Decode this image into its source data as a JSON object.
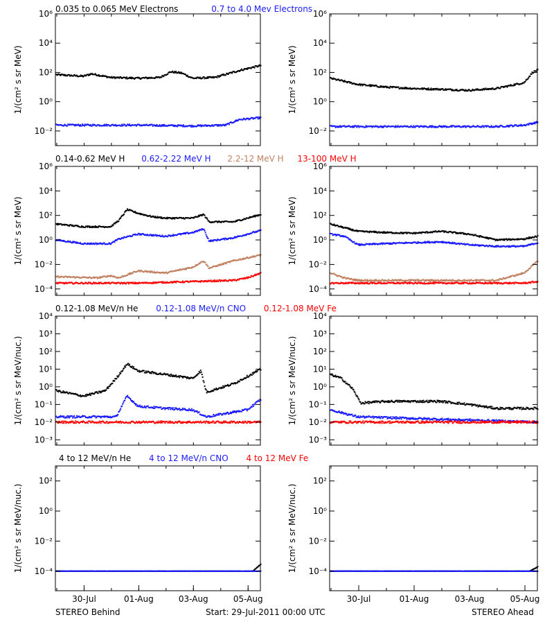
{
  "colors": {
    "black": "#000000",
    "blue": "#1a1aff",
    "tan": "#c08060",
    "red": "#ff0000"
  },
  "footer": {
    "left": "STEREO Behind",
    "center": "Start: 29-Jul-2011 00:00 UTC",
    "right": "STEREO Ahead"
  },
  "chart_data": [
    {
      "type": "scatter",
      "row": "electrons",
      "legend": [
        "0.035 to 0.065 MeV Electrons",
        "0.7 to 4.0 Mev Electrons"
      ],
      "ylabel": "1/(cm² s sr MeV)",
      "ylim": [
        0.001,
        1000000
      ],
      "log_y": true,
      "yticks": [
        "10⁻²",
        "10⁰",
        "10²",
        "10⁴",
        "10⁶"
      ],
      "xlim": [
        0,
        7.5
      ],
      "xticks": [
        "30-Jul",
        "01-Aug",
        "03-Aug",
        "05-Aug"
      ],
      "panels": [
        {
          "spacecraft": "STEREO Behind",
          "series": [
            {
              "color": "black",
              "knots": [
                [
                  0,
                  70
                ],
                [
                  1,
                  55
                ],
                [
                  1.3,
                  80
                ],
                [
                  2,
                  45
                ],
                [
                  3,
                  40
                ],
                [
                  3.8,
                  45
                ],
                [
                  4.2,
                  110
                ],
                [
                  4.6,
                  90
                ],
                [
                  5,
                  40
                ],
                [
                  5.8,
                  45
                ],
                [
                  6.8,
                  150
                ],
                [
                  7.5,
                  300
                ]
              ]
            },
            {
              "color": "blue",
              "knots": [
                [
                  0,
                  0.025
                ],
                [
                  3,
                  0.025
                ],
                [
                  5,
                  0.022
                ],
                [
                  6.2,
                  0.025
                ],
                [
                  6.7,
                  0.06
                ],
                [
                  7.5,
                  0.08
                ]
              ]
            }
          ]
        },
        {
          "spacecraft": "STEREO Ahead",
          "series": [
            {
              "color": "black",
              "knots": [
                [
                  0,
                  40
                ],
                [
                  1,
                  15
                ],
                [
                  2,
                  10
                ],
                [
                  3,
                  8
                ],
                [
                  4,
                  7
                ],
                [
                  5,
                  6
                ],
                [
                  6,
                  8
                ],
                [
                  7,
                  20
                ],
                [
                  7.3,
                  100
                ],
                [
                  7.5,
                  150
                ]
              ]
            },
            {
              "color": "blue",
              "knots": [
                [
                  0,
                  0.02
                ],
                [
                  6,
                  0.02
                ],
                [
                  7,
                  0.025
                ],
                [
                  7.5,
                  0.04
                ]
              ]
            }
          ]
        }
      ]
    },
    {
      "type": "scatter",
      "row": "protons",
      "legend": [
        "0.14-0.62 MeV H",
        "0.62-2.22 MeV H",
        "2.2-12 MeV H",
        "13-100 MeV H"
      ],
      "ylabel": "1/(cm² s sr MeV)",
      "ylim": [
        3e-05,
        1000000
      ],
      "log_y": true,
      "yticks": [
        "10⁻⁴",
        "10⁻²",
        "10⁰",
        "10²",
        "10⁴",
        "10⁶"
      ],
      "xlim": [
        0,
        7.5
      ],
      "xticks": [
        "30-Jul",
        "01-Aug",
        "03-Aug",
        "05-Aug"
      ],
      "panels": [
        {
          "spacecraft": "STEREO Behind",
          "series": [
            {
              "color": "black",
              "knots": [
                [
                  0,
                  20
                ],
                [
                  1,
                  12
                ],
                [
                  2,
                  12
                ],
                [
                  2.3,
                  40
                ],
                [
                  2.6,
                  300
                ],
                [
                  3,
                  150
                ],
                [
                  3.5,
                  80
                ],
                [
                  4,
                  60
                ],
                [
                  5,
                  60
                ],
                [
                  5.4,
                  120
                ],
                [
                  5.6,
                  30
                ],
                [
                  6.5,
                  30
                ],
                [
                  7.5,
                  120
                ]
              ]
            },
            {
              "color": "blue",
              "knots": [
                [
                  0,
                  1
                ],
                [
                  1,
                  0.5
                ],
                [
                  2,
                  0.5
                ],
                [
                  2.3,
                  1.2
                ],
                [
                  3,
                  3
                ],
                [
                  4,
                  2
                ],
                [
                  5,
                  4
                ],
                [
                  5.4,
                  8
                ],
                [
                  5.6,
                  0.8
                ],
                [
                  6.5,
                  1.5
                ],
                [
                  7.5,
                  6
                ]
              ]
            },
            {
              "color": "tan",
              "knots": [
                [
                  0,
                  0.001
                ],
                [
                  1.5,
                  0.0008
                ],
                [
                  2,
                  0.0012
                ],
                [
                  2.3,
                  0.0008
                ],
                [
                  3,
                  0.003
                ],
                [
                  4,
                  0.002
                ],
                [
                  5,
                  0.006
                ],
                [
                  5.4,
                  0.02
                ],
                [
                  5.6,
                  0.005
                ],
                [
                  6.5,
                  0.02
                ],
                [
                  7.5,
                  0.06
                ]
              ]
            },
            {
              "color": "red",
              "knots": [
                [
                  0,
                  0.0003
                ],
                [
                  3,
                  0.0003
                ],
                [
                  5,
                  0.0004
                ],
                [
                  6.5,
                  0.0005
                ],
                [
                  7,
                  0.0008
                ],
                [
                  7.5,
                  0.002
                ]
              ]
            }
          ]
        },
        {
          "spacecraft": "STEREO Ahead",
          "series": [
            {
              "color": "black",
              "knots": [
                [
                  0,
                  20
                ],
                [
                  0.5,
                  10
                ],
                [
                  1,
                  5
                ],
                [
                  2,
                  4
                ],
                [
                  3,
                  3.5
                ],
                [
                  4,
                  5
                ],
                [
                  5,
                  3
                ],
                [
                  6,
                  1
                ],
                [
                  7,
                  1.2
                ],
                [
                  7.5,
                  2
                ]
              ]
            },
            {
              "color": "blue",
              "knots": [
                [
                  0,
                  3
                ],
                [
                  0.5,
                  2
                ],
                [
                  1,
                  0.4
                ],
                [
                  2,
                  0.5
                ],
                [
                  3,
                  0.6
                ],
                [
                  4,
                  0.7
                ],
                [
                  5,
                  0.4
                ],
                [
                  6,
                  0.3
                ],
                [
                  7,
                  0.3
                ],
                [
                  7.5,
                  0.6
                ]
              ]
            },
            {
              "color": "tan",
              "knots": [
                [
                  0,
                  0.002
                ],
                [
                  0.5,
                  0.0008
                ],
                [
                  1,
                  0.0005
                ],
                [
                  6,
                  0.0005
                ],
                [
                  7,
                  0.002
                ],
                [
                  7.5,
                  0.02
                ]
              ]
            },
            {
              "color": "red",
              "knots": [
                [
                  0,
                  0.0003
                ],
                [
                  7,
                  0.0003
                ],
                [
                  7.5,
                  0.0004
                ]
              ]
            }
          ]
        }
      ]
    },
    {
      "type": "scatter",
      "row": "ions-low",
      "legend": [
        "0.12-1.08 MeV/n He",
        "0.12-1.08 MeV/n CNO",
        "0.12-1.08 MeV Fe"
      ],
      "ylabel": "1/(cm² s sr MeV/nuc.)",
      "ylim": [
        0.0005,
        10000
      ],
      "log_y": true,
      "yticks": [
        "10⁻³",
        "10⁻²",
        "10⁻¹",
        "10⁰",
        "10¹",
        "10²",
        "10³",
        "10⁴"
      ],
      "xlim": [
        0,
        7.5
      ],
      "xticks": [
        "30-Jul",
        "01-Aug",
        "03-Aug",
        "05-Aug"
      ],
      "panels": [
        {
          "spacecraft": "STEREO Behind",
          "series": [
            {
              "color": "black",
              "knots": [
                [
                  0,
                  0.6
                ],
                [
                  1,
                  0.3
                ],
                [
                  1.8,
                  0.6
                ],
                [
                  2.2,
                  3
                ],
                [
                  2.6,
                  20
                ],
                [
                  3,
                  8
                ],
                [
                  4,
                  5
                ],
                [
                  5,
                  3
                ],
                [
                  5.3,
                  8
                ],
                [
                  5.5,
                  0.5
                ],
                [
                  6.5,
                  1.5
                ],
                [
                  7.5,
                  10
                ]
              ]
            },
            {
              "color": "blue",
              "knots": [
                [
                  0,
                  0.02
                ],
                [
                  2.2,
                  0.02
                ],
                [
                  2.6,
                  0.3
                ],
                [
                  3,
                  0.08
                ],
                [
                  4,
                  0.06
                ],
                [
                  5,
                  0.05
                ],
                [
                  5.5,
                  0.02
                ],
                [
                  7,
                  0.05
                ],
                [
                  7.5,
                  0.2
                ]
              ]
            },
            {
              "color": "red",
              "knots": [
                [
                  0,
                  0.01
                ],
                [
                  7.5,
                  0.01
                ]
              ]
            }
          ]
        },
        {
          "spacecraft": "STEREO Ahead",
          "series": [
            {
              "color": "black",
              "knots": [
                [
                  0,
                  5
                ],
                [
                  0.4,
                  3
                ],
                [
                  0.8,
                  0.8
                ],
                [
                  1.1,
                  0.12
                ],
                [
                  2,
                  0.15
                ],
                [
                  3,
                  0.15
                ],
                [
                  4,
                  0.15
                ],
                [
                  5,
                  0.1
                ],
                [
                  6,
                  0.06
                ],
                [
                  7.5,
                  0.06
                ]
              ]
            },
            {
              "color": "blue",
              "knots": [
                [
                  0,
                  0.05
                ],
                [
                  1,
                  0.02
                ],
                [
                  7.5,
                  0.01
                ]
              ]
            },
            {
              "color": "red",
              "knots": [
                [
                  0,
                  0.01
                ],
                [
                  7.5,
                  0.01
                ]
              ]
            }
          ]
        }
      ]
    },
    {
      "type": "scatter",
      "row": "ions-high",
      "legend": [
        "4 to 12 MeV/n He",
        "4 to 12 MeV/n CNO",
        "4 to 12 MeV Fe"
      ],
      "ylabel": "1/(cm² s sr MeV/nuc.)",
      "ylim": [
        5e-06,
        1000
      ],
      "log_y": true,
      "yticks": [
        "10⁻⁴",
        "10⁻²",
        "10⁰",
        "10²"
      ],
      "xlim": [
        0,
        7.5
      ],
      "xticks": [
        "30-Jul",
        "01-Aug",
        "03-Aug",
        "05-Aug"
      ],
      "panels": [
        {
          "spacecraft": "STEREO Behind",
          "series": [
            {
              "color": "black",
              "knots": [
                [
                  0,
                  0.0001
                ],
                [
                  7.2,
                  0.0001
                ],
                [
                  7.5,
                  0.0003
                ]
              ]
            },
            {
              "color": "blue",
              "knots": [
                [
                  0,
                  0.0001
                ],
                [
                  7.5,
                  0.0001
                ]
              ]
            }
          ]
        },
        {
          "spacecraft": "STEREO Ahead",
          "series": [
            {
              "color": "black",
              "knots": [
                [
                  0,
                  0.0001
                ],
                [
                  7.2,
                  0.0001
                ],
                [
                  7.5,
                  0.0002
                ]
              ]
            },
            {
              "color": "blue",
              "knots": [
                [
                  0,
                  0.0001
                ],
                [
                  7.5,
                  0.0001
                ]
              ]
            }
          ]
        }
      ]
    }
  ]
}
